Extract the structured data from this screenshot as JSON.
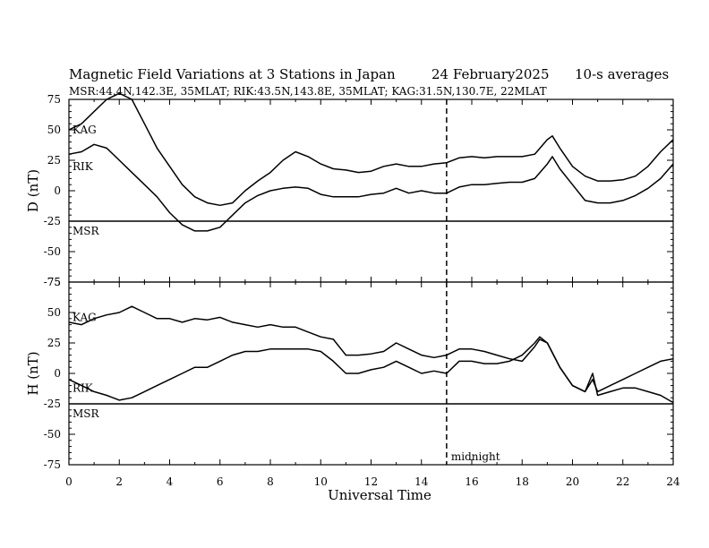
{
  "header": {
    "title": "Magnetic Field Variations at 3 Stations in Japan",
    "date": "24 February2025",
    "averages": "10-s averages",
    "stations": "MSR:44.4N,142.3E, 35MLAT;  RIK:43.5N,143.8E, 35MLAT;  KAG:31.5N,130.7E, 22MLAT"
  },
  "chart_data": [
    {
      "type": "line",
      "panel": "D",
      "ylabel": "D (nT)",
      "xlim": [
        0,
        24
      ],
      "ylim": [
        -75,
        75
      ],
      "yticks": [
        -75,
        -50,
        -25,
        0,
        25,
        50,
        75
      ],
      "series": [
        {
          "name": "KAG",
          "label_y": 50,
          "x": [
            0,
            0.5,
            1,
            1.5,
            2,
            2.5,
            3,
            3.5,
            4,
            4.5,
            5,
            5.5,
            6,
            6.5,
            7,
            7.5,
            8,
            8.5,
            9,
            9.5,
            10,
            10.5,
            11,
            11.5,
            12,
            12.5,
            13,
            13.5,
            14,
            14.5,
            15,
            15.5,
            16,
            16.5,
            17,
            17.5,
            18,
            18.5,
            19,
            19.2,
            19.5,
            20,
            20.5,
            21,
            21.5,
            22,
            22.5,
            23,
            23.5,
            24
          ],
          "y": [
            50,
            55,
            65,
            75,
            80,
            75,
            55,
            35,
            20,
            5,
            -5,
            -10,
            -12,
            -10,
            0,
            8,
            15,
            25,
            32,
            28,
            22,
            18,
            17,
            15,
            16,
            20,
            22,
            20,
            20,
            22,
            23,
            27,
            28,
            27,
            28,
            28,
            28,
            30,
            42,
            45,
            35,
            20,
            12,
            8,
            8,
            9,
            12,
            20,
            32,
            42
          ]
        },
        {
          "name": "RIK",
          "label_y": 20,
          "x": [
            0,
            0.5,
            1,
            1.5,
            2,
            2.5,
            3,
            3.5,
            4,
            4.5,
            5,
            5.5,
            6,
            6.5,
            7,
            7.5,
            8,
            8.5,
            9,
            9.5,
            10,
            10.5,
            11,
            11.5,
            12,
            12.5,
            13,
            13.5,
            14,
            14.5,
            15,
            15.5,
            16,
            16.5,
            17,
            17.5,
            18,
            18.5,
            19,
            19.2,
            19.5,
            20,
            20.5,
            21,
            21.5,
            22,
            22.5,
            23,
            23.5,
            24
          ],
          "y": [
            30,
            32,
            38,
            35,
            25,
            15,
            5,
            -5,
            -18,
            -28,
            -33,
            -33,
            -30,
            -20,
            -10,
            -4,
            0,
            2,
            3,
            2,
            -3,
            -5,
            -5,
            -5,
            -3,
            -2,
            2,
            -2,
            0,
            -2,
            -2,
            3,
            5,
            5,
            6,
            7,
            7,
            10,
            22,
            28,
            18,
            5,
            -8,
            -10,
            -10,
            -8,
            -4,
            2,
            10,
            22
          ]
        },
        {
          "name": "MSR",
          "label_y": -33,
          "x": [
            0,
            24
          ],
          "y": [
            -25,
            -25
          ]
        }
      ]
    },
    {
      "type": "line",
      "panel": "H",
      "ylabel": "H (nT)",
      "xlabel": "Universal Time",
      "xlim": [
        0,
        24
      ],
      "ylim": [
        -75,
        75
      ],
      "xticks": [
        0,
        2,
        4,
        6,
        8,
        10,
        12,
        14,
        16,
        18,
        20,
        22,
        24
      ],
      "yticks": [
        -75,
        -50,
        -25,
        0,
        25,
        50,
        75
      ],
      "series": [
        {
          "name": "KAG",
          "label_y": 46,
          "x": [
            0,
            0.5,
            1,
            1.5,
            2,
            2.5,
            3,
            3.5,
            4,
            4.5,
            5,
            5.5,
            6,
            6.5,
            7,
            7.5,
            8,
            8.5,
            9,
            9.5,
            10,
            10.5,
            11,
            11.5,
            12,
            12.5,
            13,
            13.5,
            14,
            14.5,
            15,
            15.5,
            16,
            16.5,
            17,
            17.5,
            18,
            18.5,
            18.7,
            19,
            19.5,
            20,
            20.5,
            20.8,
            21,
            21.5,
            22,
            22.5,
            23,
            23.5,
            24
          ],
          "y": [
            42,
            40,
            45,
            48,
            50,
            55,
            50,
            45,
            45,
            42,
            45,
            44,
            46,
            42,
            40,
            38,
            40,
            38,
            38,
            34,
            30,
            28,
            15,
            15,
            16,
            18,
            25,
            20,
            15,
            13,
            15,
            20,
            20,
            18,
            15,
            12,
            10,
            22,
            28,
            25,
            5,
            -10,
            -15,
            -5,
            -15,
            -10,
            -5,
            0,
            5,
            10,
            12
          ]
        },
        {
          "name": "RIK",
          "label_y": -12,
          "x": [
            0,
            0.5,
            1,
            1.5,
            2,
            2.5,
            3,
            3.5,
            4,
            4.5,
            5,
            5.5,
            6,
            6.5,
            7,
            7.5,
            8,
            8.5,
            9,
            9.5,
            10,
            10.5,
            11,
            11.5,
            12,
            12.5,
            13,
            13.5,
            14,
            14.5,
            15,
            15.5,
            16,
            16.5,
            17,
            17.5,
            18,
            18.5,
            18.7,
            19,
            19.5,
            20,
            20.5,
            20.8,
            21,
            21.5,
            22,
            22.5,
            23,
            23.5,
            24
          ],
          "y": [
            -5,
            -10,
            -15,
            -18,
            -22,
            -20,
            -15,
            -10,
            -5,
            0,
            5,
            5,
            10,
            15,
            18,
            18,
            20,
            20,
            20,
            20,
            18,
            10,
            0,
            0,
            3,
            5,
            10,
            5,
            0,
            2,
            0,
            10,
            10,
            8,
            8,
            10,
            15,
            25,
            30,
            25,
            5,
            -10,
            -15,
            0,
            -18,
            -15,
            -12,
            -12,
            -15,
            -18,
            -24
          ]
        },
        {
          "name": "MSR",
          "label_y": -33,
          "x": [
            0,
            24
          ],
          "y": [
            -25,
            -25
          ]
        }
      ],
      "annotations": [
        {
          "text": "midnight",
          "x": 15
        }
      ]
    }
  ],
  "marker": {
    "x": 15,
    "label": "midnight"
  }
}
